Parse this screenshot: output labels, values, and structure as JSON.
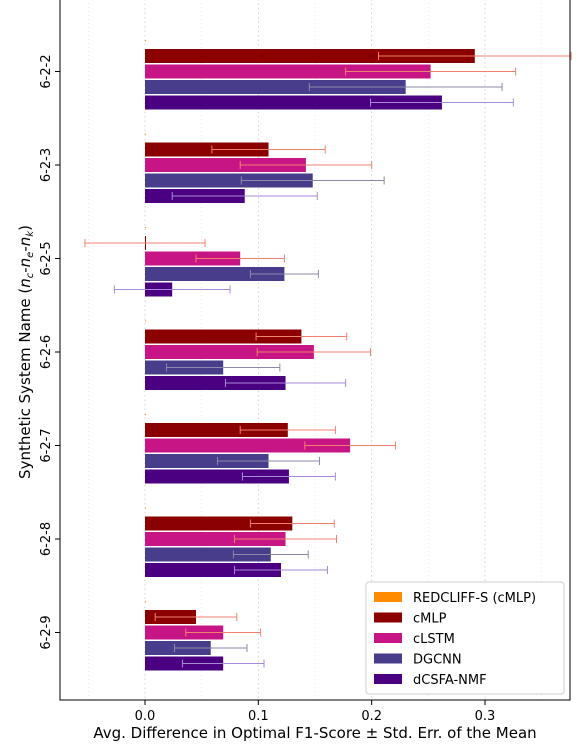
{
  "chart_data": {
    "type": "bar",
    "orientation": "horizontal",
    "title": "",
    "xlabel": "Avg. Difference in Optimal F1-Score ± Std. Err. of the Mean",
    "ylabel_parts": {
      "prefix": "Synthetic System Name (",
      "n1": "n",
      "s1": "c",
      "dash1": "-",
      "n2": "n",
      "s2": "e",
      "dash2": "-",
      "n3": "n",
      "s3": "k",
      "suffix": ")"
    },
    "categories": [
      "6-2-2",
      "6-2-3",
      "6-2-5",
      "6-2-6",
      "6-2-7",
      "6-2-8",
      "6-2-9"
    ],
    "xlim": [
      -0.075,
      0.375
    ],
    "xticks": [
      0.0,
      0.1,
      0.2,
      0.3
    ],
    "xtick_labels": [
      "0.0",
      "0.1",
      "0.2",
      "0.3"
    ],
    "grid": "x-dotted",
    "legend_position": "lower-right",
    "series": [
      {
        "name": "REDCLIFF-S (cMLP)",
        "color": "#ff8c00",
        "values": [
          0,
          0,
          0,
          0,
          0,
          0,
          0
        ],
        "errors": [
          0,
          0,
          0,
          0,
          0,
          0,
          0
        ]
      },
      {
        "name": "cMLP",
        "color": "#8b0000",
        "values": [
          0.291,
          0.109,
          0.0,
          0.138,
          0.126,
          0.13,
          0.045
        ],
        "errors": [
          0.085,
          0.05,
          0.053,
          0.04,
          0.042,
          0.037,
          0.036
        ]
      },
      {
        "name": "cLSTM",
        "color": "#c71585",
        "values": [
          0.252,
          0.142,
          0.084,
          0.149,
          0.181,
          0.124,
          0.069
        ],
        "errors": [
          0.075,
          0.058,
          0.039,
          0.05,
          0.04,
          0.045,
          0.033
        ]
      },
      {
        "name": "DGCNN",
        "color": "#483d8b",
        "values": [
          0.23,
          0.148,
          0.123,
          0.069,
          0.109,
          0.111,
          0.058
        ],
        "errors": [
          0.085,
          0.063,
          0.03,
          0.05,
          0.045,
          0.033,
          0.032
        ]
      },
      {
        "name": "dCSFA-NMF",
        "color": "#4b0082",
        "values": [
          0.262,
          0.088,
          0.024,
          0.124,
          0.127,
          0.12,
          0.069
        ],
        "errors": [
          0.063,
          0.064,
          0.051,
          0.053,
          0.041,
          0.041,
          0.036
        ]
      }
    ]
  }
}
